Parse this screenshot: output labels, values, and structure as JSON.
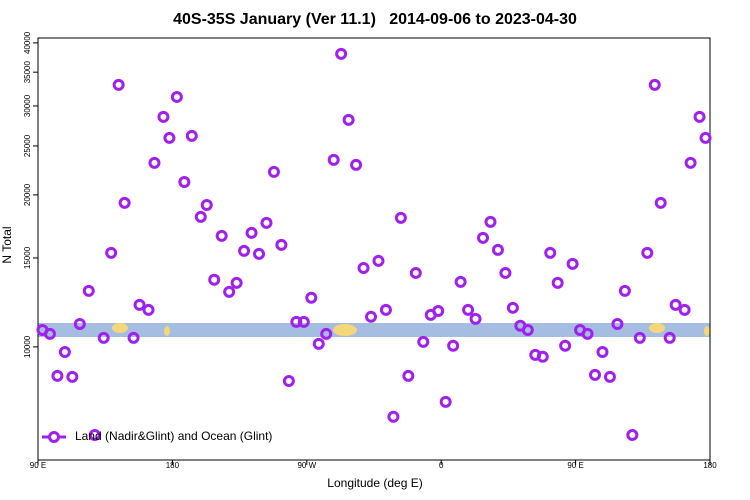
{
  "chart_data": {
    "type": "scatter",
    "title": "40S-35S January (Ver 11.1)   2014-09-06 to 2023-04-30",
    "x_label": "Longitude (deg E)",
    "y_label": "N Total",
    "log_scale_y": true,
    "legend_position": "bottom-left",
    "xlim": [
      90,
      540
    ],
    "ylim": [
      5970,
      40900
    ],
    "xticks": [
      {
        "value": 90,
        "label": "90 E"
      },
      180,
      {
        "value": 270,
        "label": "90 W"
      },
      {
        "value": 360,
        "label": "0"
      },
      {
        "value": 450,
        "label": "90 E"
      },
      {
        "value": 540,
        "label": "180"
      }
    ],
    "yticks": [
      10000,
      15000,
      20000,
      25000,
      30000,
      35000,
      40000
    ],
    "series": [
      {
        "name": "Land (Nadir&Glint) and Ocean (Glint)",
        "color": "#a020f0",
        "x": [
          93,
          98,
          103,
          108,
          113,
          118,
          124,
          128,
          134,
          139,
          144,
          148,
          154,
          158,
          164,
          168,
          174,
          178,
          183,
          188,
          193,
          199,
          203,
          208,
          213,
          218,
          223,
          228,
          233,
          238,
          243,
          248,
          253,
          258,
          263,
          268,
          273,
          278,
          283,
          288,
          293,
          298,
          303,
          308,
          313,
          318,
          323,
          328,
          333,
          338,
          343,
          348,
          353,
          358,
          363,
          368,
          373,
          378,
          383,
          388,
          393,
          398,
          403,
          408,
          413,
          418,
          423,
          428,
          433,
          438,
          443,
          448,
          453,
          458,
          463,
          468,
          473,
          478,
          483,
          488,
          493,
          498,
          503,
          507,
          513,
          517,
          523,
          527,
          533,
          537
        ],
        "values": [
          10800,
          10610,
          8760,
          9770,
          8720,
          11100,
          12910,
          6690,
          10420,
          15350,
          33030,
          19280,
          10420,
          12110,
          11840,
          23140,
          28540,
          25930,
          31260,
          21210,
          26170,
          18090,
          19100,
          13580,
          16590,
          12850,
          13390,
          15490,
          16820,
          15280,
          17600,
          22210,
          15920,
          8560,
          11210,
          11210,
          12510,
          10140,
          10610,
          23460,
          38040,
          28160,
          22930,
          14330,
          11470,
          14800,
          11840,
          7270,
          18010,
          8760,
          14010,
          10230,
          11570,
          11780,
          7780,
          10050,
          13450,
          11840,
          11360,
          16440,
          17680,
          15560,
          14010,
          11950,
          11010,
          10800,
          9640,
          9560,
          15350,
          13390,
          10050,
          14600,
          10800,
          10610,
          8800,
          9770,
          8720,
          11100,
          12910,
          6690,
          10420,
          15350,
          33030,
          19280,
          10420,
          12110,
          11840,
          23140,
          28540,
          25930
        ]
      }
    ]
  }
}
